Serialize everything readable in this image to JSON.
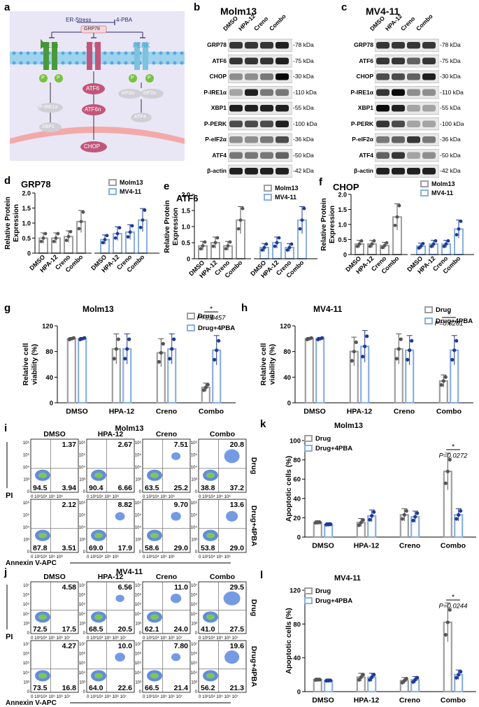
{
  "panel_letters": {
    "a": "a",
    "b": "b",
    "c": "c",
    "d": "d",
    "e": "e",
    "f": "f",
    "g": "g",
    "h": "h",
    "i": "i",
    "j": "j",
    "k": "k",
    "l": "l"
  },
  "pathway": {
    "er_stress": "ER-Stress",
    "pba": "4-PBA",
    "grp78": "GRP78",
    "ire1a": "IRE1α",
    "atf6": "ATF6",
    "perk": "PERK",
    "p": "P",
    "p_ire1a": "P-IRE1α",
    "xbp1": "XBP1",
    "atf6_cleaved": "ATF6",
    "atf6n": "ATF6n",
    "eif2a": "eIF2α",
    "atf4": "ATF4",
    "chop": "CHOP"
  },
  "blot_b": {
    "title": "Molm13",
    "lanes": [
      "DMSO",
      "HPA-12",
      "Creno",
      "Combo"
    ],
    "rows": [
      "GRP78",
      "ATF6",
      "CHOP",
      "P-IRE1α",
      "XBP1",
      "P-PERK",
      "P-eIF2α",
      "ATF4",
      "β-actin"
    ],
    "kda": [
      "78 kDa",
      "75 kDa",
      "30 kDa",
      "110 kDa",
      "55 kDa",
      "100 kDa",
      "36 kDa",
      "50 kDa",
      "42 kDa"
    ]
  },
  "blot_c": {
    "title": "MV4-11",
    "lanes": [
      "DMSO",
      "HPA-12",
      "Creno",
      "Combo"
    ],
    "rows": [
      "GRP78",
      "ATF6",
      "CHOP",
      "P-IRE1α",
      "XBP1",
      "P-PERK",
      "P-eIF2α",
      "ATF4",
      "β-actin"
    ],
    "kda": [
      "78 kDa",
      "75 kDa",
      "30 kDa",
      "110 kDa",
      "55 kDa",
      "100 kDa",
      "36 kDa",
      "50 kDa",
      "42 kDa"
    ]
  },
  "colors": {
    "molm13": "#9e9e9e",
    "mv411": "#8aafe0",
    "drug": "#9e9e9e",
    "drug_4pba": "#8aafe0",
    "dark_gray": "#555555",
    "navy": "#1f3a93"
  },
  "chart_data": [
    {
      "id": "d",
      "type": "bar",
      "title": "GRP78",
      "ylabel": "Relative Protein Expression",
      "categories": [
        "DMSO",
        "HPA-12",
        "Creno",
        "Combo"
      ],
      "series": [
        {
          "name": "Molm13",
          "values": [
            0.5,
            0.5,
            0.55,
            1.05
          ]
        },
        {
          "name": "MV4-11",
          "values": [
            0.45,
            0.65,
            0.7,
            1.1
          ]
        }
      ],
      "yticks": [
        "0",
        "0.5",
        "1.0",
        "1.5",
        "2.0"
      ],
      "ylim": [
        0,
        2
      ]
    },
    {
      "id": "e",
      "type": "bar",
      "title": "ATF6",
      "ylabel": "Relative Protein Expression",
      "categories": [
        "DMSO",
        "HPA-12",
        "Creno",
        "Combo"
      ],
      "series": [
        {
          "name": "Molm13",
          "values": [
            0.4,
            0.5,
            0.4,
            1.2
          ]
        },
        {
          "name": "MV4-11",
          "values": [
            0.35,
            0.5,
            0.35,
            1.2
          ]
        }
      ],
      "yticks": [
        "0",
        "0.5",
        "1.0",
        "1.5",
        "2.0"
      ],
      "ylim": [
        0,
        2
      ]
    },
    {
      "id": "f",
      "type": "bar",
      "title": "CHOP",
      "ylabel": "Relative Protein Expression",
      "categories": [
        "DMSO",
        "HPA-12",
        "Creno",
        "Combo"
      ],
      "series": [
        {
          "name": "Molm13",
          "values": [
            0.35,
            0.35,
            0.3,
            1.25
          ]
        },
        {
          "name": "MV4-11",
          "values": [
            0.28,
            0.35,
            0.35,
            0.85
          ]
        }
      ],
      "yticks": [
        "0",
        "0.5",
        "1.0",
        "1.5",
        "2.0"
      ],
      "ylim": [
        0,
        2
      ]
    },
    {
      "id": "g",
      "type": "bar",
      "title": "Molm13",
      "ylabel": "Relative cell viability (%)",
      "categories": [
        "DMSO",
        "HPA-12",
        "Creno",
        "Combo"
      ],
      "series": [
        {
          "name": "Drug",
          "values": [
            100,
            84,
            78,
            24
          ]
        },
        {
          "name": "Drug+4PBA",
          "values": [
            100,
            84,
            84,
            82
          ]
        }
      ],
      "yticks": [
        "0",
        "40",
        "80",
        "120"
      ],
      "ylim": [
        0,
        120
      ],
      "annotation": "*",
      "pvalue": "P=0.0457"
    },
    {
      "id": "h",
      "type": "bar",
      "title": "MV4-11",
      "ylabel": "Relative cell viability (%)",
      "categories": [
        "DMSO",
        "HPA-12",
        "Creno",
        "Combo"
      ],
      "series": [
        {
          "name": "Drug",
          "values": [
            100,
            80,
            84,
            34
          ]
        },
        {
          "name": "Drug+4PBA",
          "values": [
            100,
            88,
            82,
            82
          ]
        }
      ],
      "yticks": [
        "0",
        "40",
        "80",
        "120"
      ],
      "ylim": [
        0,
        120
      ],
      "annotation": "*",
      "pvalue": "P=0.0261"
    },
    {
      "id": "k",
      "type": "bar",
      "title": "Molm13",
      "ylabel": "Apoptotic cells (%)",
      "categories": [
        "DMSO",
        "HPA-12",
        "Creno",
        "Combo"
      ],
      "series": [
        {
          "name": "Drug",
          "values": [
            15,
            15,
            23,
            68
          ]
        },
        {
          "name": "Drug+4PBA",
          "values": [
            13,
            22,
            21,
            23
          ]
        }
      ],
      "yticks": [
        "0",
        "20",
        "40",
        "60",
        "80",
        "100"
      ],
      "ylim": [
        0,
        100
      ],
      "annotation": "*",
      "pvalue": "P=0.0272"
    },
    {
      "id": "l",
      "type": "bar",
      "title": "MV4-11",
      "ylabel": "Apoptotic cells (%)",
      "categories": [
        "DMSO",
        "HPA-12",
        "Creno",
        "Combo"
      ],
      "series": [
        {
          "name": "Drug",
          "values": [
            14,
            17,
            13,
            82
          ]
        },
        {
          "name": "Drug+4PBA",
          "values": [
            13,
            17,
            14,
            20
          ]
        }
      ],
      "yticks": [
        "0",
        "40",
        "80",
        "120"
      ],
      "ylim": [
        0,
        120
      ],
      "annotation": "*",
      "pvalue": "P=0.0244"
    }
  ],
  "flow_i": {
    "title": "Molm13",
    "xlabel": "Annexin V-APC",
    "ylabel": "PI",
    "cols": [
      "DMSO",
      "HPA-12",
      "Creno",
      "Combo"
    ],
    "row_labels": [
      "Drug",
      "Drug+4PBA"
    ],
    "yticks": [
      "10⁶",
      "10⁵",
      "10⁴",
      "10³",
      "0"
    ],
    "xticks": "0 10³10⁴ 10⁵ 10⁶",
    "quads": [
      [
        [
          "1.37",
          "94.5",
          "3.94"
        ],
        [
          "2.67",
          "90.4",
          "6.66"
        ],
        [
          "7.51",
          "63.5",
          "25.2"
        ],
        [
          "20.8",
          "38.8",
          "37.2"
        ]
      ],
      [
        [
          "2.12",
          "87.8",
          "3.51"
        ],
        [
          "8.82",
          "69.0",
          "17.9"
        ],
        [
          "9.70",
          "58.6",
          "29.0"
        ],
        [
          "13.6",
          "53.8",
          "29.0"
        ]
      ]
    ]
  },
  "flow_j": {
    "title": "MV4-11",
    "xlabel": "Annexin V-APC",
    "ylabel": "PI",
    "cols": [
      "DMSO",
      "HPA-12",
      "Creno",
      "Combo"
    ],
    "row_labels": [
      "Drug",
      "Drug+4PBA"
    ],
    "yticks": [
      "10⁷",
      "10⁶",
      "10⁵",
      "10⁴",
      "10³",
      "0"
    ],
    "xticks": "0 10³10⁴ 10⁵ 10⁶ 10⁷",
    "quads": [
      [
        [
          "4.58",
          "72.5",
          "17.5"
        ],
        [
          "6.56",
          "68.5",
          "20.5"
        ],
        [
          "11.0",
          "62.1",
          "24.0"
        ],
        [
          "29.5",
          "41.0",
          "27.5"
        ]
      ],
      [
        [
          "4.27",
          "73.5",
          "16.8"
        ],
        [
          "10.0",
          "64.0",
          "22.6"
        ],
        [
          "7.80",
          "66.5",
          "21.4"
        ],
        [
          "19.6",
          "56.2",
          "21.3"
        ]
      ]
    ]
  }
}
